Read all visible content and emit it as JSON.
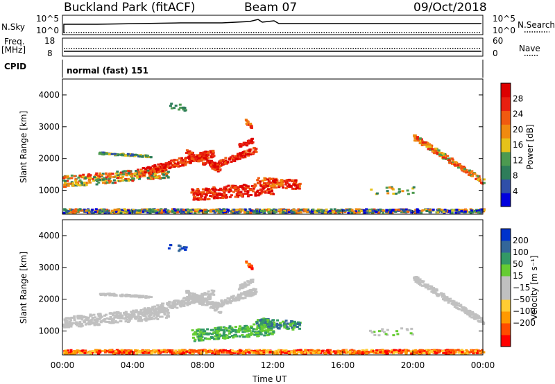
{
  "header": {
    "station": "Buckland Park (fitACF)",
    "beam": "Beam 07",
    "date": "09/Oct/2018"
  },
  "summary": {
    "nsky_label": "N.Sky",
    "nsky_top": "10^5",
    "nsky_bottom": "10^0",
    "nsearch_label": "N.Search",
    "nsearch_top": "10^5",
    "nsearch_bottom": "10^0",
    "freq_label": "Freq.",
    "freq_unit": "[MHz]",
    "freq_top": "18",
    "freq_bottom": "8",
    "nave_label": "Nave",
    "nave_top": "60",
    "nave_bottom": "0",
    "cpid_label": "CPID",
    "cpid_value": "normal (fast) 151"
  },
  "colors": {
    "power_scale": [
      "#0000dd",
      "#2f4fa8",
      "#2e7d5a",
      "#4c9a50",
      "#e6c21a",
      "#f08a10",
      "#f05a10",
      "#e82010",
      "#dd0000"
    ],
    "velocity_scale": [
      "#ff0000",
      "#ff4c00",
      "#ff9900",
      "#ffcc33",
      "#c0c0c0",
      "#c0c0c0",
      "#66cc33",
      "#339966",
      "#336699",
      "#0033cc"
    ]
  },
  "chart_data": [
    {
      "type": "heatmap",
      "panel": "power",
      "ylabel": "Slant Range [km]",
      "yticks": [
        "1000",
        "2000",
        "3000",
        "4000"
      ],
      "ylim": [
        250,
        4500
      ],
      "xlim": [
        0,
        24
      ],
      "colorbar_label": "Power [dB]",
      "colorbar_ticks": [
        "4",
        "8",
        "12",
        "16",
        "20",
        "24",
        "28"
      ],
      "colorbar_range": [
        0,
        32
      ]
    },
    {
      "type": "heatmap",
      "panel": "velocity",
      "ylabel": "Slant Range [km]",
      "yticks": [
        "1000",
        "2000",
        "3000",
        "4000"
      ],
      "ylim": [
        250,
        4500
      ],
      "xlim": [
        0,
        24
      ],
      "xticks": [
        "00:00",
        "04:00",
        "08:00",
        "12:00",
        "16:00",
        "20:00",
        "00:00"
      ],
      "xlabel": "Time UT",
      "colorbar_label": "Velocity [m s⁻¹]",
      "colorbar_ticks": [
        "200",
        "100",
        "50",
        "15",
        "−15",
        "−50",
        "−100",
        "−200"
      ]
    }
  ]
}
